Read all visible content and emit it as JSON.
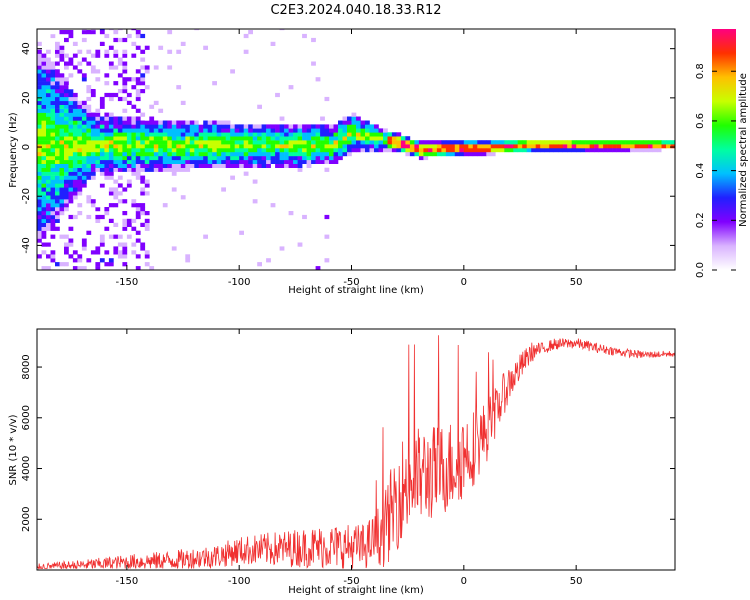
{
  "figure": {
    "title": "C2E3.2024.040.18.33.R12"
  },
  "chart_data": [
    {
      "type": "heatmap",
      "xlabel": "Height of straight line (km)",
      "ylabel": "Frequency (Hz)",
      "xlim": [
        -190,
        94
      ],
      "ylim": [
        -50,
        48
      ],
      "xticks": [
        -150,
        -100,
        -50,
        0,
        50
      ],
      "yticks": [
        -40,
        -20,
        0,
        20,
        40
      ],
      "colorbar": {
        "label": "Normalized spectral amplitude",
        "range": [
          0.0,
          0.97
        ],
        "ticks": [
          0.0,
          0.2,
          0.4,
          0.6,
          0.8
        ],
        "colormap": [
          "#ffffff",
          "#d9b3ff",
          "#8000ff",
          "#2020ff",
          "#00c0ff",
          "#00ffa0",
          "#20ff00",
          "#c8ff00",
          "#ffc000",
          "#ff3000",
          "#ff0080"
        ]
      },
      "band_center_hz": [
        {
          "x": -190,
          "f": 0
        },
        {
          "x": -60,
          "f": 0
        },
        {
          "x": -50,
          "f": 5
        },
        {
          "x": -40,
          "f": 3
        },
        {
          "x": -30,
          "f": 1
        },
        {
          "x": -20,
          "f": -2
        },
        {
          "x": 0,
          "f": -1
        },
        {
          "x": 10,
          "f": -1
        },
        {
          "x": 30,
          "f": 0
        },
        {
          "x": 94,
          "f": 0
        }
      ],
      "band_halfwidth_hz": [
        {
          "x": -190,
          "w": 40
        },
        {
          "x": -165,
          "w": 12
        },
        {
          "x": -100,
          "w": 9
        },
        {
          "x": -50,
          "w": 8
        },
        {
          "x": -35,
          "w": 4
        },
        {
          "x": 0,
          "w": 3
        },
        {
          "x": 94,
          "w": 2
        }
      ]
    },
    {
      "type": "line",
      "xlabel": "Height of straight line (km)",
      "ylabel": "SNR (10 * v/v)",
      "xlim": [
        -190,
        94
      ],
      "ylim": [
        0,
        9500
      ],
      "xticks": [
        -150,
        -100,
        -50,
        0,
        50
      ],
      "yticks": [
        2000,
        4000,
        6000,
        8000
      ],
      "series": [
        {
          "color": "#f03030",
          "envelope_mean": [
            {
              "x": -190,
              "y": 100
            },
            {
              "x": -170,
              "y": 150
            },
            {
              "x": -150,
              "y": 250
            },
            {
              "x": -130,
              "y": 300
            },
            {
              "x": -110,
              "y": 450
            },
            {
              "x": -100,
              "y": 650
            },
            {
              "x": -80,
              "y": 700
            },
            {
              "x": -60,
              "y": 750
            },
            {
              "x": -45,
              "y": 700
            },
            {
              "x": -35,
              "y": 1300
            },
            {
              "x": -28,
              "y": 2800
            },
            {
              "x": -20,
              "y": 3300
            },
            {
              "x": -12,
              "y": 3500
            },
            {
              "x": -5,
              "y": 3800
            },
            {
              "x": 5,
              "y": 4600
            },
            {
              "x": 10,
              "y": 5200
            },
            {
              "x": 20,
              "y": 7200
            },
            {
              "x": 30,
              "y": 8500
            },
            {
              "x": 40,
              "y": 8850
            },
            {
              "x": 50,
              "y": 8900
            },
            {
              "x": 60,
              "y": 8700
            },
            {
              "x": 70,
              "y": 8550
            },
            {
              "x": 80,
              "y": 8450
            },
            {
              "x": 94,
              "y": 8500
            }
          ],
          "noise_amplitude": [
            {
              "x": -190,
              "y": 150
            },
            {
              "x": -110,
              "y": 600
            },
            {
              "x": -60,
              "y": 1100
            },
            {
              "x": -40,
              "y": 1200
            },
            {
              "x": -30,
              "y": 2600
            },
            {
              "x": 0,
              "y": 2200
            },
            {
              "x": 20,
              "y": 900
            },
            {
              "x": 35,
              "y": 300
            },
            {
              "x": 94,
              "y": 150
            }
          ]
        }
      ]
    }
  ]
}
